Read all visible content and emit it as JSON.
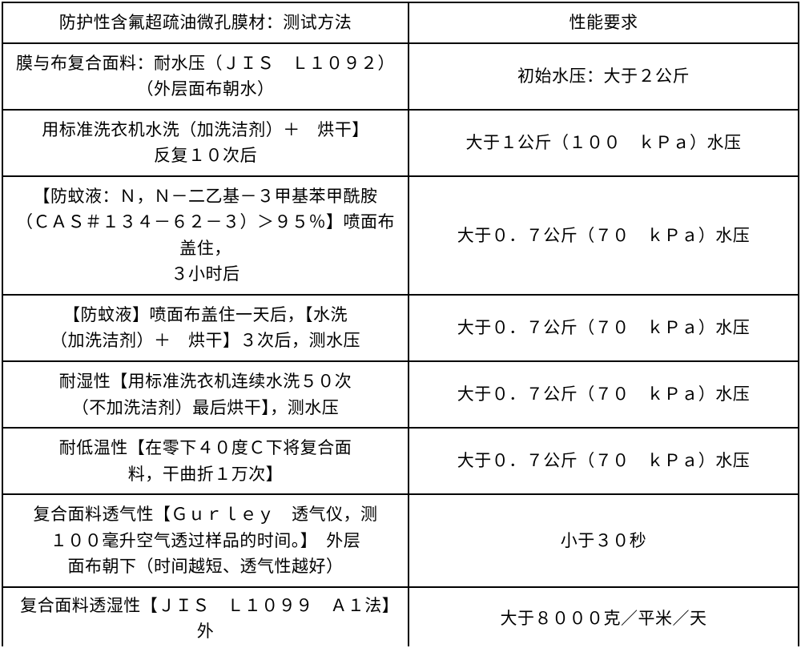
{
  "table": {
    "rows": [
      {
        "left": "防护性含氟超疏油微孔膜材：测试方法",
        "right": "性能要求"
      },
      {
        "left": "膜与布复合面料：耐水压（ＪＩＳ　Ｌ１０９２）\n（外层面布朝水）",
        "right": "初始水压：大于２公斤"
      },
      {
        "left": "用标准洗衣机水洗（加洗洁剂）＋　烘干】\n反复１０次后",
        "right": "大于１公斤（１００　ｋＰａ）水压"
      },
      {
        "left": "【防蚊液：Ｎ，Ｎ－二乙基－３甲基苯甲酰胺\n（ＣＡＳ＃１３４－６２－３）＞９５％】喷面布盖住，\n３小时后",
        "right": "大于０．７公斤（７０　ｋＰａ）水压"
      },
      {
        "left": "【防蚊液】喷面布盖住一天后，【水洗\n（加洗洁剂）＋　烘干】３次后，测水压",
        "right": "大于０．７公斤（７０　ｋＰａ）水压"
      },
      {
        "left": "耐湿性【用标准洗衣机连续水洗５０次\n（不加洗洁剂）最后烘干】，测水压",
        "right": "大于０．７公斤（７０　ｋＰａ）水压"
      },
      {
        "left": "耐低温性【在零下４０度Ｃ下将复合面\n料，干曲折１万次】",
        "right": "大于０．７公斤（７０　ｋＰａ）水压"
      },
      {
        "left": "复合面料透气性【Ｇｕｒｌｅｙ　透气仪，测\n１００毫升空气透过样品的时间。】　外层\n面布朝下（时间越短、透气性越好）",
        "right": "小于３０秒"
      },
      {
        "left": "复合面料透湿性【ＪＩＳ　Ｌ１０９９　Ａ１法】　外",
        "right": "大于８０００克／平米／天",
        "lastRow": true
      }
    ]
  }
}
